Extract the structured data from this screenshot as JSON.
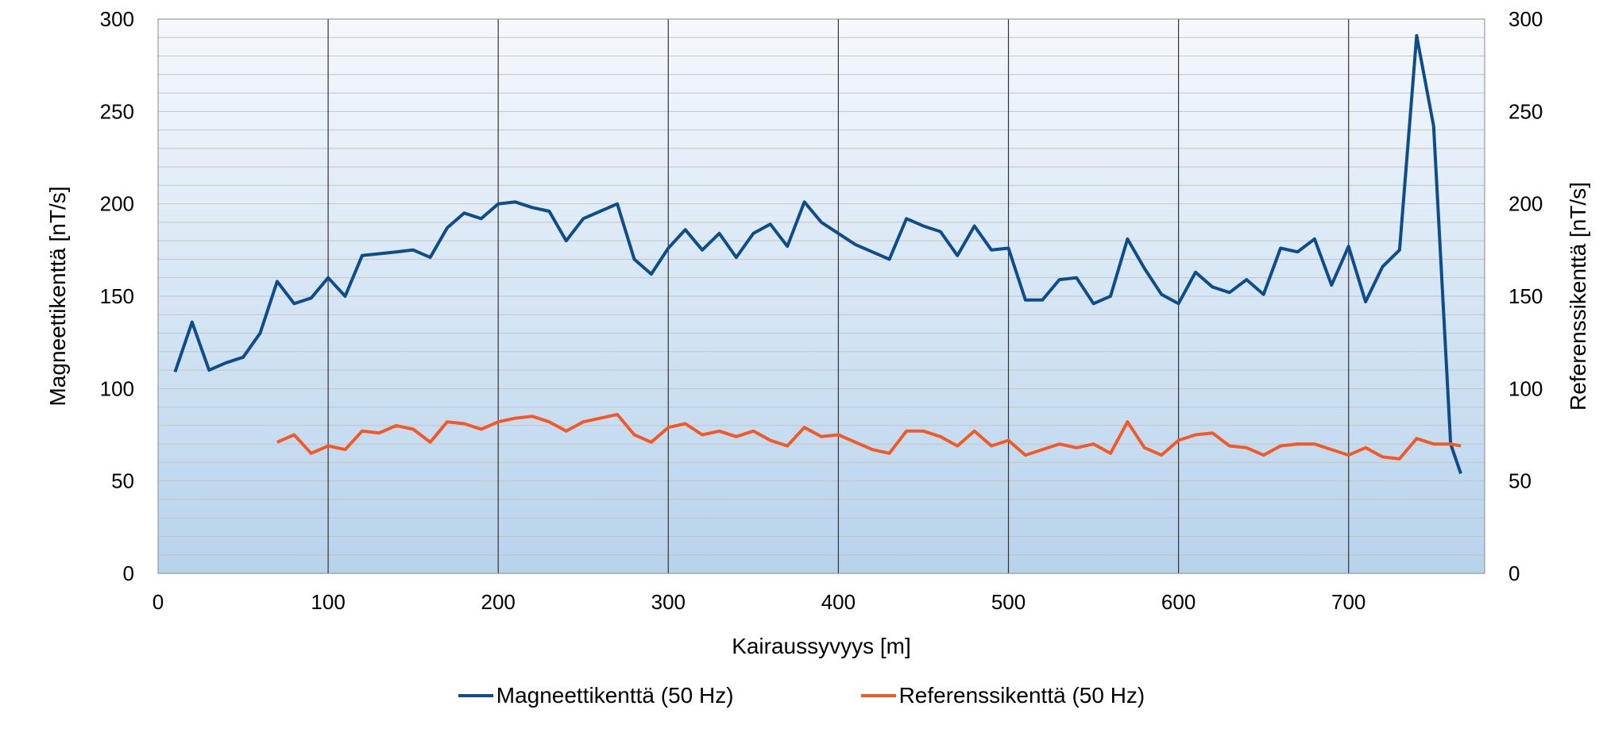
{
  "chart_data": {
    "type": "line",
    "xlabel": "Kairaussyvyys [m]",
    "ylabel_left": "Magneettikenttä [nT/s]",
    "ylabel_right": "Referenssikenttä [nT/s]",
    "xlim": [
      0,
      780
    ],
    "ylim": [
      0,
      300
    ],
    "x_ticks": [
      0,
      100,
      200,
      300,
      400,
      500,
      600,
      700
    ],
    "y_ticks": [
      0,
      50,
      100,
      150,
      200,
      250,
      300
    ],
    "grid": true,
    "legend_position": "bottom",
    "series": [
      {
        "name": "Magneettikenttä (50 Hz)",
        "color": "#0f4c8a",
        "axis": "left",
        "x": [
          10,
          20,
          30,
          40,
          50,
          60,
          70,
          80,
          90,
          100,
          110,
          120,
          130,
          140,
          150,
          160,
          170,
          180,
          190,
          200,
          210,
          220,
          230,
          240,
          250,
          260,
          270,
          280,
          290,
          300,
          310,
          320,
          330,
          340,
          350,
          360,
          370,
          380,
          390,
          400,
          410,
          420,
          430,
          440,
          450,
          460,
          470,
          480,
          490,
          500,
          510,
          520,
          530,
          540,
          550,
          560,
          570,
          580,
          590,
          600,
          610,
          620,
          630,
          640,
          650,
          660,
          670,
          680,
          690,
          700,
          710,
          720,
          730,
          740,
          750,
          760,
          766
        ],
        "y": [
          109,
          136,
          110,
          114,
          117,
          130,
          158,
          146,
          149,
          160,
          150,
          172,
          173,
          174,
          175,
          171,
          187,
          195,
          192,
          200,
          201,
          198,
          196,
          180,
          192,
          196,
          200,
          170,
          162,
          176,
          186,
          175,
          184,
          171,
          184,
          189,
          177,
          201,
          190,
          184,
          178,
          174,
          170,
          192,
          188,
          185,
          172,
          188,
          175,
          176,
          148,
          148,
          159,
          160,
          146,
          150,
          181,
          165,
          151,
          146,
          163,
          155,
          152,
          159,
          151,
          176,
          174,
          181,
          156,
          177,
          147,
          166,
          175,
          291,
          242,
          70,
          54
        ]
      },
      {
        "name": "Referenssikenttä (50 Hz)",
        "color": "#f05a28",
        "axis": "right",
        "x": [
          70,
          80,
          90,
          100,
          110,
          120,
          130,
          140,
          150,
          160,
          170,
          180,
          190,
          200,
          210,
          220,
          230,
          240,
          250,
          260,
          270,
          280,
          290,
          300,
          310,
          320,
          330,
          340,
          350,
          360,
          370,
          380,
          390,
          400,
          410,
          420,
          430,
          440,
          450,
          460,
          470,
          480,
          490,
          500,
          510,
          520,
          530,
          540,
          550,
          560,
          570,
          580,
          590,
          600,
          610,
          620,
          630,
          640,
          650,
          660,
          670,
          680,
          690,
          700,
          710,
          720,
          730,
          740,
          750,
          760,
          766
        ],
        "y": [
          71,
          75,
          65,
          69,
          67,
          77,
          76,
          80,
          78,
          71,
          82,
          81,
          78,
          82,
          84,
          85,
          82,
          77,
          82,
          84,
          86,
          75,
          71,
          79,
          81,
          75,
          77,
          74,
          77,
          72,
          69,
          79,
          74,
          75,
          71,
          67,
          65,
          77,
          77,
          74,
          69,
          77,
          69,
          72,
          64,
          67,
          70,
          68,
          70,
          65,
          82,
          68,
          64,
          72,
          75,
          76,
          69,
          68,
          64,
          69,
          70,
          70,
          67,
          64,
          68,
          63,
          62,
          73,
          70,
          70,
          69
        ]
      }
    ]
  }
}
